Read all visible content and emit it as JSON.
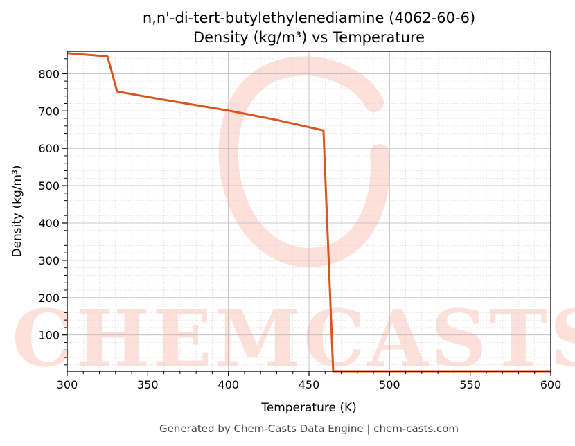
{
  "chart_data": {
    "type": "line",
    "title_line1": "n,n'-di-tert-butylethylenediamine (4062-60-6)",
    "title_line2": "Density (kg/m³) vs Temperature",
    "xlabel": "Temperature (K)",
    "ylabel": "Density (kg/m³)",
    "xlim": [
      300,
      600
    ],
    "ylim": [
      3,
      860
    ],
    "xticks": [
      300,
      350,
      400,
      450,
      500,
      550,
      600
    ],
    "yticks": [
      100,
      200,
      300,
      400,
      500,
      600,
      700,
      800
    ],
    "grid": true,
    "line_color": "#d9541e",
    "series": [
      {
        "x": [
          300,
          325,
          331,
          360,
          400,
          430,
          459,
          465,
          600
        ],
        "y": [
          855,
          846,
          752,
          730,
          701,
          676,
          648,
          3,
          3
        ]
      }
    ]
  },
  "watermark": {
    "text": "CHEMCASTS",
    "color": "#fde0da"
  },
  "footer": "Generated by Chem-Casts Data Engine | chem-casts.com"
}
